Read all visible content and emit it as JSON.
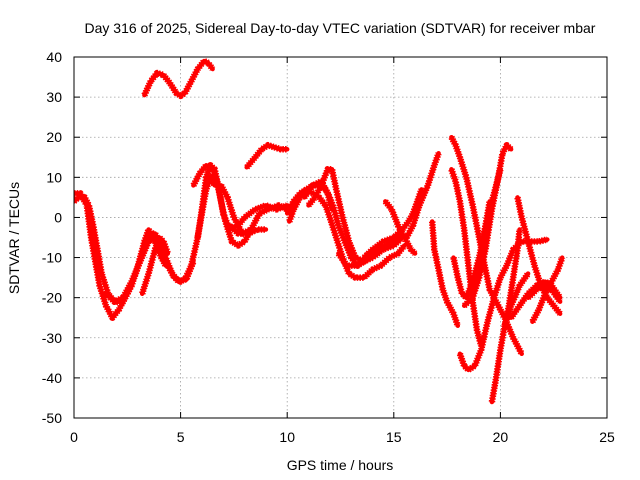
{
  "chart_data": {
    "type": "line",
    "title": "Day 316 of 2025, Sidereal Day-to-day VTEC variation (SDTVAR) for receiver mbar",
    "xlabel": "GPS time / hours",
    "ylabel": "SDTVAR / TECUs",
    "xlim": [
      0,
      25
    ],
    "ylim": [
      -50,
      40
    ],
    "xticks": [
      0,
      5,
      10,
      15,
      20,
      25
    ],
    "yticks": [
      -50,
      -40,
      -30,
      -20,
      -10,
      0,
      10,
      20,
      30,
      40
    ],
    "grid": true,
    "line_color": "#ff0000",
    "series": [
      {
        "points": [
          [
            0.0,
            4
          ],
          [
            0.2,
            5
          ],
          [
            0.5,
            5
          ],
          [
            0.7,
            3
          ],
          [
            0.9,
            -2
          ],
          [
            1.1,
            -8
          ],
          [
            1.3,
            -14
          ],
          [
            1.6,
            -19
          ],
          [
            1.9,
            -21
          ],
          [
            2.3,
            -20
          ],
          [
            2.7,
            -16
          ],
          [
            3.1,
            -11
          ],
          [
            3.5,
            -6
          ],
          [
            3.7,
            -5
          ],
          [
            4.0,
            -7
          ],
          [
            4.3,
            -10
          ],
          [
            4.6,
            -14
          ],
          [
            4.9,
            -16
          ],
          [
            5.2,
            -15.5
          ],
          [
            5.5,
            -12
          ],
          [
            5.8,
            -5
          ],
          [
            6.0,
            1
          ],
          [
            6.2,
            7
          ],
          [
            6.4,
            10
          ],
          [
            6.6,
            8
          ]
        ]
      },
      {
        "points": [
          [
            0.0,
            6
          ],
          [
            0.3,
            6
          ],
          [
            0.6,
            3
          ],
          [
            0.8,
            -5
          ],
          [
            1.0,
            -11
          ],
          [
            1.2,
            -17
          ],
          [
            1.5,
            -22
          ],
          [
            1.8,
            -25
          ],
          [
            2.1,
            -23
          ],
          [
            2.5,
            -19
          ],
          [
            2.9,
            -14
          ],
          [
            3.2,
            -9
          ],
          [
            3.5,
            -4
          ],
          [
            3.8,
            -4
          ],
          [
            4.1,
            -7
          ],
          [
            4.4,
            -12
          ],
          [
            4.7,
            -15
          ],
          [
            5.0,
            -16
          ],
          [
            5.3,
            -15
          ],
          [
            5.6,
            -11
          ]
        ]
      },
      {
        "points": [
          [
            1.5,
            -19
          ],
          [
            1.9,
            -21
          ],
          [
            2.3,
            -21
          ],
          [
            2.7,
            -17
          ],
          [
            3.0,
            -12
          ],
          [
            3.3,
            -6
          ],
          [
            3.5,
            -3
          ],
          [
            3.8,
            -6
          ],
          [
            4.1,
            -10
          ],
          [
            4.3,
            -12
          ]
        ]
      },
      {
        "points": [
          [
            3.2,
            -19
          ],
          [
            3.5,
            -14
          ],
          [
            3.8,
            -8
          ],
          [
            4.0,
            -5
          ],
          [
            4.2,
            -6
          ],
          [
            4.4,
            -9
          ]
        ]
      },
      {
        "points": [
          [
            3.3,
            30.5
          ],
          [
            3.6,
            34
          ],
          [
            3.9,
            36
          ],
          [
            4.2,
            35.5
          ],
          [
            4.5,
            33.5
          ],
          [
            4.8,
            31
          ],
          [
            5.0,
            30.3
          ],
          [
            5.2,
            31
          ],
          [
            5.5,
            34
          ],
          [
            5.8,
            37
          ],
          [
            6.1,
            39
          ],
          [
            6.3,
            38.5
          ],
          [
            6.5,
            37
          ]
        ]
      },
      {
        "points": [
          [
            5.6,
            8
          ],
          [
            5.9,
            11
          ],
          [
            6.2,
            13
          ],
          [
            6.5,
            12
          ],
          [
            6.7,
            9
          ],
          [
            6.9,
            4
          ],
          [
            7.1,
            -1
          ],
          [
            7.4,
            -6
          ],
          [
            7.7,
            -7
          ],
          [
            8.0,
            -6
          ],
          [
            8.2,
            -4
          ]
        ]
      },
      {
        "points": [
          [
            5.8,
            -5
          ],
          [
            6.0,
            2
          ],
          [
            6.2,
            10
          ],
          [
            6.4,
            13
          ],
          [
            6.6,
            12
          ],
          [
            6.8,
            7
          ],
          [
            7.0,
            1
          ],
          [
            7.3,
            -3
          ],
          [
            7.7,
            -2
          ],
          [
            8.0,
            0
          ],
          [
            8.5,
            2
          ],
          [
            9.0,
            3
          ],
          [
            9.5,
            2
          ],
          [
            10.0,
            3
          ]
        ]
      },
      {
        "points": [
          [
            6.9,
            8
          ],
          [
            7.2,
            5
          ],
          [
            7.5,
            0
          ],
          [
            7.9,
            -4
          ],
          [
            8.3,
            -3
          ],
          [
            8.7,
            1
          ],
          [
            9.1,
            2
          ],
          [
            9.6,
            3
          ],
          [
            10.0,
            2
          ]
        ]
      },
      {
        "points": [
          [
            7.3,
            -2
          ],
          [
            7.7,
            -4
          ],
          [
            8.2,
            -4
          ],
          [
            8.6,
            -3
          ],
          [
            9.0,
            -3
          ]
        ]
      },
      {
        "points": [
          [
            8.1,
            12.5
          ],
          [
            8.5,
            15
          ],
          [
            8.8,
            17
          ],
          [
            9.1,
            18
          ],
          [
            9.4,
            17.5
          ],
          [
            9.7,
            17
          ],
          [
            10.0,
            17
          ]
        ]
      },
      {
        "points": [
          [
            10.1,
            -1
          ],
          [
            10.3,
            2
          ],
          [
            10.6,
            5
          ],
          [
            10.9,
            7
          ],
          [
            11.2,
            8
          ],
          [
            11.5,
            8
          ],
          [
            11.8,
            7
          ],
          [
            12.0,
            5
          ],
          [
            12.2,
            2
          ],
          [
            12.4,
            -2
          ],
          [
            12.7,
            -6
          ],
          [
            13.0,
            -10
          ],
          [
            13.3,
            -12
          ],
          [
            13.6,
            -11
          ],
          [
            13.8,
            -9
          ]
        ]
      },
      {
        "points": [
          [
            10.0,
            1
          ],
          [
            10.3,
            4
          ],
          [
            10.6,
            6
          ],
          [
            10.9,
            7
          ],
          [
            11.2,
            6
          ],
          [
            11.5,
            5
          ],
          [
            11.8,
            3
          ],
          [
            12.0,
            0
          ],
          [
            12.3,
            -5
          ],
          [
            12.6,
            -10
          ],
          [
            12.9,
            -14
          ],
          [
            13.2,
            -15
          ],
          [
            13.6,
            -15
          ],
          [
            14.0,
            -13
          ],
          [
            14.4,
            -12
          ],
          [
            14.8,
            -10
          ],
          [
            15.2,
            -9
          ],
          [
            15.5,
            -7
          ]
        ]
      },
      {
        "points": [
          [
            11.0,
            3
          ],
          [
            11.3,
            5
          ],
          [
            11.6,
            8
          ],
          [
            11.9,
            12
          ],
          [
            12.1,
            12
          ],
          [
            12.3,
            7
          ],
          [
            12.6,
            0
          ],
          [
            12.9,
            -6
          ],
          [
            13.2,
            -10
          ],
          [
            13.6,
            -11
          ],
          [
            14.0,
            -10
          ],
          [
            14.5,
            -8
          ],
          [
            15.0,
            -7
          ],
          [
            15.4,
            -5
          ]
        ]
      },
      {
        "points": [
          [
            10.8,
            5
          ],
          [
            11.2,
            8
          ],
          [
            11.6,
            9
          ],
          [
            11.9,
            6
          ],
          [
            12.1,
            2
          ]
        ]
      },
      {
        "points": [
          [
            12.4,
            -9
          ],
          [
            12.8,
            -12
          ],
          [
            13.3,
            -12
          ],
          [
            13.7,
            -10
          ],
          [
            14.2,
            -8
          ],
          [
            14.6,
            -7
          ],
          [
            15.0,
            -6
          ],
          [
            15.4,
            -4
          ]
        ]
      },
      {
        "points": [
          [
            13.6,
            -10
          ],
          [
            14.0,
            -8
          ],
          [
            14.5,
            -6
          ],
          [
            15.0,
            -5
          ],
          [
            15.4,
            -3
          ],
          [
            15.7,
            -1
          ],
          [
            15.9,
            1
          ],
          [
            16.1,
            4
          ],
          [
            16.3,
            7
          ]
        ]
      },
      {
        "points": [
          [
            14.6,
            4
          ],
          [
            14.9,
            2
          ],
          [
            15.2,
            -2
          ],
          [
            15.5,
            -5
          ],
          [
            15.8,
            -8
          ],
          [
            16.0,
            -9
          ]
        ]
      },
      {
        "points": [
          [
            15.6,
            -5
          ],
          [
            15.9,
            -2
          ],
          [
            16.2,
            3
          ],
          [
            16.6,
            8
          ],
          [
            16.9,
            13
          ],
          [
            17.1,
            16
          ]
        ]
      },
      {
        "points": [
          [
            16.8,
            -1
          ],
          [
            16.9,
            -8
          ],
          [
            17.1,
            -13
          ],
          [
            17.3,
            -18
          ],
          [
            17.5,
            -21
          ],
          [
            17.8,
            -24
          ],
          [
            18.0,
            -27
          ]
        ]
      },
      {
        "points": [
          [
            17.7,
            12
          ],
          [
            17.9,
            9
          ],
          [
            18.1,
            4
          ],
          [
            18.3,
            -3
          ],
          [
            18.5,
            -12
          ],
          [
            18.7,
            -21
          ],
          [
            18.9,
            -28
          ],
          [
            19.1,
            -32
          ]
        ]
      },
      {
        "points": [
          [
            17.7,
            20
          ],
          [
            17.9,
            18
          ],
          [
            18.1,
            15
          ],
          [
            18.4,
            10
          ],
          [
            18.7,
            3
          ],
          [
            19.0,
            -5
          ],
          [
            19.3,
            -13
          ],
          [
            19.5,
            -18
          ],
          [
            19.8,
            -21
          ],
          [
            20.2,
            -25
          ],
          [
            20.6,
            -30
          ],
          [
            21.0,
            -34
          ]
        ]
      },
      {
        "points": [
          [
            18.1,
            -34
          ],
          [
            18.3,
            -37
          ],
          [
            18.5,
            -38
          ],
          [
            18.8,
            -37
          ],
          [
            19.1,
            -33
          ],
          [
            19.4,
            -26
          ],
          [
            19.7,
            -20
          ],
          [
            20.0,
            -15
          ],
          [
            20.3,
            -12
          ],
          [
            20.6,
            -8
          ],
          [
            21.0,
            -6
          ],
          [
            21.4,
            -6
          ],
          [
            21.8,
            -6
          ],
          [
            22.2,
            -5.5
          ]
        ]
      },
      {
        "points": [
          [
            17.8,
            -10
          ],
          [
            18.0,
            -15
          ],
          [
            18.2,
            -19
          ],
          [
            18.4,
            -20
          ],
          [
            18.7,
            -18
          ],
          [
            19.0,
            -12
          ],
          [
            19.3,
            -3
          ],
          [
            19.6,
            4
          ],
          [
            19.9,
            10
          ],
          [
            20.0,
            12
          ]
        ]
      },
      {
        "points": [
          [
            18.3,
            -22
          ],
          [
            18.7,
            -20
          ],
          [
            19.0,
            -15
          ],
          [
            19.3,
            -8
          ],
          [
            19.6,
            2
          ],
          [
            19.9,
            10
          ],
          [
            20.1,
            16
          ],
          [
            20.3,
            18
          ],
          [
            20.5,
            17
          ]
        ]
      },
      {
        "points": [
          [
            18.4,
            -20
          ],
          [
            18.7,
            -16
          ],
          [
            19.0,
            -10
          ],
          [
            19.3,
            -2
          ],
          [
            19.5,
            4
          ]
        ]
      },
      {
        "points": [
          [
            19.6,
            -46
          ],
          [
            19.8,
            -40
          ],
          [
            20.0,
            -33
          ],
          [
            20.2,
            -27
          ],
          [
            20.5,
            -22
          ],
          [
            20.9,
            -17
          ],
          [
            21.3,
            -14
          ]
        ]
      },
      {
        "points": [
          [
            20.2,
            -27
          ],
          [
            20.4,
            -22
          ],
          [
            20.6,
            -15
          ],
          [
            20.8,
            -8
          ],
          [
            20.9,
            -3
          ]
        ]
      },
      {
        "points": [
          [
            20.8,
            5
          ],
          [
            21.0,
            0
          ],
          [
            21.3,
            -6
          ],
          [
            21.6,
            -12
          ],
          [
            21.9,
            -17
          ],
          [
            22.2,
            -20
          ],
          [
            22.5,
            -22
          ],
          [
            22.8,
            -24
          ]
        ]
      },
      {
        "points": [
          [
            20.5,
            -25
          ],
          [
            20.9,
            -22
          ],
          [
            21.3,
            -19
          ],
          [
            21.7,
            -17
          ],
          [
            22.1,
            -16
          ],
          [
            22.4,
            -17
          ],
          [
            22.8,
            -20
          ]
        ]
      },
      {
        "points": [
          [
            21.5,
            -26
          ],
          [
            21.8,
            -23
          ],
          [
            22.1,
            -19
          ],
          [
            22.4,
            -16
          ],
          [
            22.7,
            -13
          ],
          [
            22.9,
            -10
          ]
        ]
      },
      {
        "points": [
          [
            21.3,
            -20
          ],
          [
            21.7,
            -18
          ],
          [
            22.0,
            -17
          ],
          [
            22.4,
            -18
          ],
          [
            22.8,
            -21
          ]
        ]
      }
    ]
  }
}
